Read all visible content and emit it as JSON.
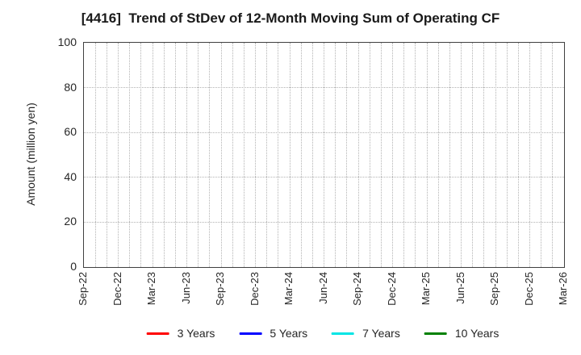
{
  "chart_data": {
    "type": "line",
    "title": "[4416]  Trend of StDev of 12-Month Moving Sum of Operating CF",
    "xlabel": "",
    "ylabel": "Amount (million yen)",
    "ylim": [
      0,
      100
    ],
    "y_ticks": [
      0,
      20,
      40,
      60,
      80,
      100
    ],
    "x_tick_labels": [
      "Sep-22",
      "Dec-22",
      "Mar-23",
      "Jun-23",
      "Sep-23",
      "Dec-23",
      "Mar-24",
      "Jun-24",
      "Sep-24",
      "Dec-24",
      "Mar-25",
      "Jun-25",
      "Sep-25",
      "Dec-25",
      "Mar-26"
    ],
    "x_major_interval_months": 3,
    "x_minor_interval_months": 1,
    "months_total": 42,
    "grid": {
      "on": true,
      "style": "dotted",
      "color": "#b3b3b3",
      "vertical": "every month",
      "horizontal": "every 20 units"
    },
    "legend_position": "bottom-center",
    "series": [
      {
        "name": "3 Years",
        "color": "#ff0000",
        "x": [],
        "values": []
      },
      {
        "name": "5 Years",
        "color": "#0000ff",
        "x": [],
        "values": []
      },
      {
        "name": "7 Years",
        "color": "#00e5e5",
        "x": [],
        "values": []
      },
      {
        "name": "10 Years",
        "color": "#008000",
        "x": [],
        "values": []
      }
    ],
    "note": "Plot area is empty: axes, grid and legend only, no data lines are drawn."
  }
}
